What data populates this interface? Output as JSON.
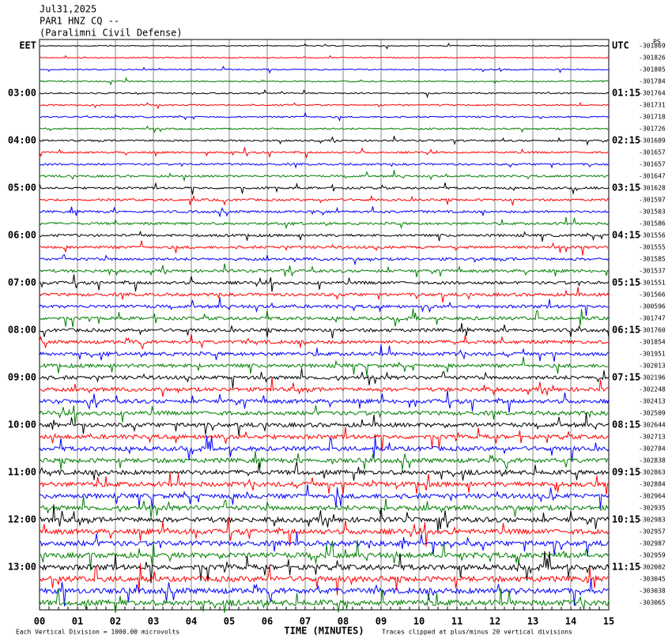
{
  "chart_data": {
    "type": "helicorder",
    "title": "Jul31,2025",
    "subtitle": "PAR1 HNZ CQ --",
    "station": "(Paralimni Civil Defense)",
    "corner_label": "PS",
    "xlabel": "TIME (MINUTES)",
    "scale_note": "Each Vertical Division = 1000.00 microvolts",
    "clip_note": "Traces clipped at plus/minus 20 vertical divisions",
    "xlim": [
      0,
      15
    ],
    "xticks": [
      {
        "value": 0,
        "label": "00"
      },
      {
        "value": 1,
        "label": "01"
      },
      {
        "value": 2,
        "label": "02"
      },
      {
        "value": 3,
        "label": "03"
      },
      {
        "value": 4,
        "label": "04"
      },
      {
        "value": 5,
        "label": "05"
      },
      {
        "value": 6,
        "label": "06"
      },
      {
        "value": 7,
        "label": "07"
      },
      {
        "value": 8,
        "label": "08"
      },
      {
        "value": 9,
        "label": "09"
      },
      10,
      11,
      12,
      13,
      14,
      15
    ],
    "left_labels": [
      "EET",
      "03:00",
      "04:00",
      "05:00",
      "06:00",
      "07:00",
      "08:00",
      "09:00",
      "10:00",
      "11:00",
      "12:00",
      "13:00"
    ],
    "right_labels": [
      "UTC",
      "01:15",
      "02:15",
      "03:15",
      "04:15",
      "05:15",
      "06:15",
      "07:15",
      "08:15",
      "09:15",
      "10:15",
      "11:15"
    ],
    "trace_colors": [
      "#000000",
      "#ff0000",
      "#0000ff",
      "#007f00"
    ],
    "offsets": [
      -301869,
      -301826,
      -301805,
      -301784,
      -301764,
      -301731,
      -301718,
      -301726,
      -301689,
      -301657,
      -301657,
      -301647,
      -301628,
      -301597,
      -301503,
      -301586,
      -301556,
      -301555,
      -301585,
      -301537,
      -301551,
      -301566,
      -300596,
      -301747,
      -301760,
      -301854,
      -301951,
      -302013,
      -302196,
      -302248,
      -302413,
      -302509,
      -302644,
      -302713,
      -302784,
      -302838,
      -302863,
      -302884,
      -302964,
      -302935,
      -302983,
      -302957,
      -302987,
      -302959,
      -302002,
      -303045,
      -303038,
      -303065
    ]
  }
}
